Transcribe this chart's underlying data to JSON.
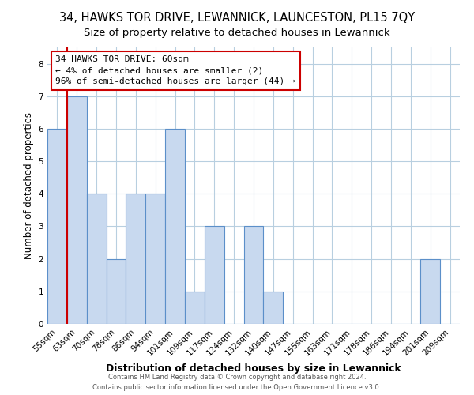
{
  "title": "34, HAWKS TOR DRIVE, LEWANNICK, LAUNCESTON, PL15 7QY",
  "subtitle": "Size of property relative to detached houses in Lewannick",
  "xlabel": "Distribution of detached houses by size in Lewannick",
  "ylabel": "Number of detached properties",
  "categories": [
    "55sqm",
    "63sqm",
    "70sqm",
    "78sqm",
    "86sqm",
    "94sqm",
    "101sqm",
    "109sqm",
    "117sqm",
    "124sqm",
    "132sqm",
    "140sqm",
    "147sqm",
    "155sqm",
    "163sqm",
    "171sqm",
    "178sqm",
    "186sqm",
    "194sqm",
    "201sqm",
    "209sqm"
  ],
  "values": [
    6,
    7,
    4,
    2,
    4,
    4,
    6,
    1,
    3,
    0,
    3,
    1,
    0,
    0,
    0,
    0,
    0,
    0,
    0,
    2,
    0
  ],
  "bar_color": "#c8d9ef",
  "bar_edge_color": "#5b8fc9",
  "bar_edge_width": 0.8,
  "red_line_x": 0.5,
  "red_line_color": "#cc0000",
  "annotation_line1": "34 HAWKS TOR DRIVE: 60sqm",
  "annotation_line2": "← 4% of detached houses are smaller (2)",
  "annotation_line3": "96% of semi-detached houses are larger (44) →",
  "ylim": [
    0,
    8.5
  ],
  "yticks": [
    0,
    1,
    2,
    3,
    4,
    5,
    6,
    7,
    8
  ],
  "background_color": "#ffffff",
  "grid_color": "#b8cfe0",
  "footer_line1": "Contains HM Land Registry data © Crown copyright and database right 2024.",
  "footer_line2": "Contains public sector information licensed under the Open Government Licence v3.0.",
  "title_fontsize": 10.5,
  "subtitle_fontsize": 9.5,
  "xlabel_fontsize": 9,
  "ylabel_fontsize": 8.5,
  "tick_fontsize": 7.5,
  "annot_fontsize": 8,
  "footer_fontsize": 6
}
